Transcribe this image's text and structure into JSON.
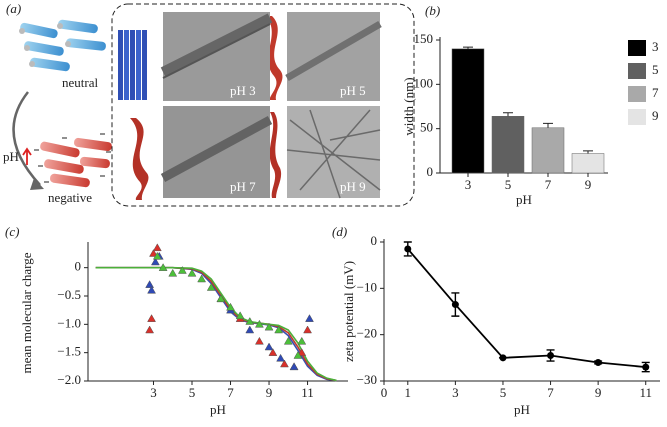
{
  "panel_a": {
    "label": "(a)",
    "neutral": "neutral",
    "ph": "pH",
    "negative": "negative",
    "images": [
      "pH 3",
      "pH 5",
      "pH 7",
      "pH 9"
    ]
  },
  "chart_data": [
    {
      "type": "bar",
      "label": "(b)",
      "xlabel": "pH",
      "ylabel": "width (nm)",
      "categories": [
        "3",
        "5",
        "7",
        "9"
      ],
      "values": [
        140,
        64,
        51,
        22
      ],
      "errors": [
        2,
        4,
        5,
        3
      ],
      "colors": [
        "#000000",
        "#606060",
        "#a9a9a9",
        "#e4e4e4"
      ],
      "ylim": [
        0,
        150
      ],
      "yticks": [
        0,
        50,
        100,
        150
      ],
      "legend": "right"
    },
    {
      "type": "scatter",
      "label": "(c)",
      "xlabel": "pH",
      "ylabel": "mean molecular charge",
      "xlim": [
        -0.4,
        13.1
      ],
      "xticks": [
        3,
        5,
        7,
        9,
        11
      ],
      "ylim": [
        -2,
        0.4
      ],
      "yticks": [
        0,
        {
          "value": -0.5,
          "label": "−0.5"
        },
        {
          "value": -1.0,
          "label": "−1.0"
        },
        {
          "value": -1.5,
          "label": "−1.5"
        },
        {
          "value": -2.0,
          "label": "−2.0"
        }
      ],
      "series": [
        {
          "mode": "line",
          "color": "#3a4fb0",
          "x": [
            0,
            1,
            2,
            3,
            4,
            5,
            5.5,
            6,
            6.5,
            7,
            7.5,
            8,
            8.5,
            9,
            9.5,
            10,
            10.5,
            11,
            11.5,
            12,
            12.5
          ],
          "values": [
            0,
            0,
            0,
            0,
            0,
            -0.03,
            -0.1,
            -0.28,
            -0.53,
            -0.78,
            -0.92,
            -0.97,
            -0.99,
            -1.01,
            -1.06,
            -1.2,
            -1.46,
            -1.74,
            -1.9,
            -1.97,
            -1.99
          ]
        },
        {
          "mode": "line",
          "color": "#c03a2b",
          "x": [
            0,
            1,
            2,
            3,
            4,
            5,
            5.5,
            6,
            6.5,
            7,
            7.5,
            8,
            8.5,
            9,
            9.5,
            10,
            10.5,
            11,
            11.5,
            12,
            12.5
          ],
          "values": [
            0,
            0,
            0,
            0,
            0,
            -0.02,
            -0.08,
            -0.24,
            -0.49,
            -0.74,
            -0.9,
            -0.96,
            -0.98,
            -1.0,
            -1.04,
            -1.15,
            -1.4,
            -1.7,
            -1.88,
            -1.96,
            -1.99
          ]
        },
        {
          "mode": "line",
          "color": "#4caf3a",
          "x": [
            0,
            1,
            2,
            3,
            4,
            5,
            5.5,
            6,
            6.5,
            7,
            7.5,
            8,
            8.5,
            9,
            9.5,
            10,
            10.5,
            11,
            11.5,
            12,
            12.5
          ],
          "values": [
            0,
            0,
            0,
            0,
            0,
            -0.01,
            -0.06,
            -0.2,
            -0.45,
            -0.7,
            -0.88,
            -0.95,
            -0.98,
            -1.0,
            -1.02,
            -1.1,
            -1.33,
            -1.65,
            -1.86,
            -1.95,
            -1.99
          ]
        },
        {
          "mode": "marker",
          "color": "#d9302a",
          "x": [
            2.8,
            2.9,
            3.0,
            3.2,
            6.5,
            7.5,
            8.5,
            9.2,
            9.8,
            10.3,
            10.7,
            11.0
          ],
          "values": [
            -1.1,
            -0.9,
            0.25,
            0.35,
            -0.55,
            -0.9,
            -1.3,
            -1.5,
            -1.7,
            -1.75,
            -1.5,
            -1.1
          ]
        },
        {
          "mode": "marker",
          "color": "#2f49b5",
          "x": [
            2.8,
            2.9,
            3.1,
            3.3,
            7.0,
            8.0,
            9.0,
            9.6,
            10.3,
            11.1
          ],
          "values": [
            -0.3,
            -0.4,
            0.1,
            0.2,
            -0.75,
            -1.1,
            -1.4,
            -1.6,
            -1.75,
            -0.9
          ]
        },
        {
          "mode": "marker",
          "color": "#4cbf3a",
          "x": [
            3.2,
            3.5,
            4.0,
            4.5,
            5.0,
            5.5,
            6.0,
            6.5,
            7.0,
            7.5,
            8.0,
            8.5,
            9.0,
            9.5,
            10.0,
            10.5,
            10.7
          ],
          "values": [
            0.2,
            0,
            -0.1,
            -0.05,
            -0.1,
            -0.2,
            -0.35,
            -0.55,
            -0.7,
            -0.85,
            -0.95,
            -1.0,
            -1.05,
            -1.1,
            -1.3,
            -1.55,
            -1.3
          ]
        }
      ]
    },
    {
      "type": "line",
      "label": "(d)",
      "xlabel": "pH",
      "ylabel": "zeta potential (mV)",
      "xlim": [
        0,
        11.6
      ],
      "xticks": [
        0,
        1,
        3,
        5,
        7,
        9,
        11
      ],
      "ylim": [
        -30,
        0
      ],
      "yticks": [
        0,
        {
          "value": -10,
          "label": "−10"
        },
        {
          "value": -20,
          "label": "−20"
        },
        {
          "value": -30,
          "label": "−30"
        }
      ],
      "x": [
        1,
        3,
        5,
        7,
        9,
        11
      ],
      "values": [
        -1.5,
        -13.5,
        -25,
        -24.5,
        -26,
        -27
      ],
      "errors": [
        1.5,
        2.5,
        0,
        1.2,
        0.3,
        1
      ],
      "color": "#000000"
    }
  ]
}
